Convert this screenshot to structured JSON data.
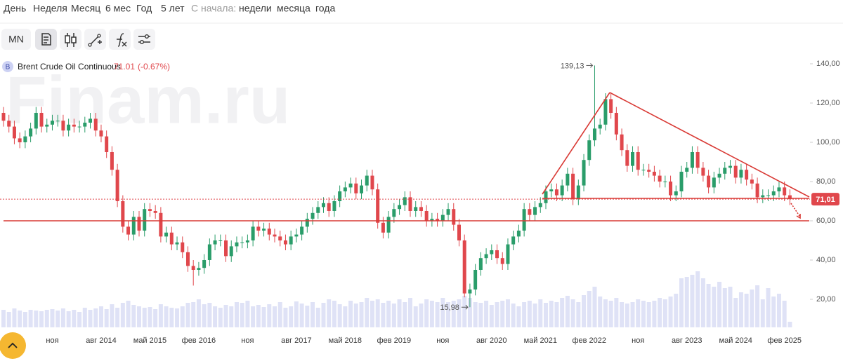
{
  "toolbar": {
    "tabs": [
      "День",
      "Неделя",
      "Месяц",
      "6 мес",
      "Год",
      "5 лет"
    ],
    "since_label": "С начала:",
    "since": [
      "недели",
      "месяца",
      "года"
    ],
    "symbol_button": "MN"
  },
  "watermark": "Finam.ru",
  "chart_data": {
    "type": "candlestick",
    "legend": {
      "symbol": "B",
      "name": "Brent Crude Oil Continuous",
      "price": 71.01,
      "change": {
        "value": -0.67,
        "label": "(-0.67%)"
      }
    },
    "categories": [
      null,
      null,
      null,
      null,
      null,
      null,
      null,
      null,
      null,
      "ноя",
      null,
      null,
      null,
      null,
      null,
      null,
      null,
      null,
      "авг 2014",
      null,
      null,
      null,
      null,
      null,
      null,
      null,
      null,
      "май 2015",
      null,
      null,
      null,
      null,
      null,
      null,
      null,
      null,
      "фев 2016",
      null,
      null,
      null,
      null,
      null,
      null,
      null,
      null,
      "ноя",
      null,
      null,
      null,
      null,
      null,
      null,
      null,
      null,
      "авг 2017",
      null,
      null,
      null,
      null,
      null,
      null,
      null,
      null,
      "май 2018",
      null,
      null,
      null,
      null,
      null,
      null,
      null,
      null,
      "фев 2019",
      null,
      null,
      null,
      null,
      null,
      null,
      null,
      null,
      "ноя",
      null,
      null,
      null,
      null,
      null,
      null,
      null,
      null,
      "авг 2020",
      null,
      null,
      null,
      null,
      null,
      null,
      null,
      null,
      "май 2021",
      null,
      null,
      null,
      null,
      null,
      null,
      null,
      null,
      "фев 2022",
      null,
      null,
      null,
      null,
      null,
      null,
      null,
      null,
      "ноя",
      null,
      null,
      null,
      null,
      null,
      null,
      null,
      null,
      "авг 2023",
      null,
      null,
      null,
      null,
      null,
      null,
      null,
      null,
      "май 2024",
      null,
      null,
      null,
      null,
      null,
      null,
      null,
      null,
      "фев 2025",
      null
    ],
    "open": [
      115,
      111,
      108,
      102,
      100,
      103,
      107,
      115,
      108,
      109,
      111,
      111,
      106,
      109,
      108,
      108,
      110,
      112,
      106,
      103,
      95,
      86,
      70,
      57,
      53,
      62,
      55,
      66,
      65,
      64,
      52,
      54,
      48,
      49,
      44,
      37,
      35,
      36,
      40,
      48,
      50,
      50,
      42,
      47,
      49,
      49,
      50,
      57,
      55,
      56,
      53,
      52,
      50,
      48,
      52,
      53,
      57,
      61,
      64,
      67,
      69,
      65,
      70,
      75,
      77,
      79,
      74,
      78,
      83,
      76,
      59,
      54,
      62,
      66,
      68,
      72,
      65,
      67,
      65,
      60,
      61,
      60,
      63,
      66,
      58,
      50,
      23,
      25,
      35,
      41,
      43,
      45,
      41,
      38,
      48,
      52,
      55,
      66,
      63,
      67,
      69,
      75,
      76,
      73,
      78,
      84,
      71,
      78,
      91,
      101,
      107,
      109,
      122,
      115,
      104,
      96,
      88,
      95,
      86,
      86,
      85,
      83,
      80,
      80,
      73,
      75,
      85,
      87,
      95,
      87,
      83,
      77,
      82,
      84,
      87,
      88,
      82,
      86,
      81,
      79,
      72,
      73,
      73,
      75,
      77,
      73
    ],
    "high": [
      118,
      114,
      111,
      105,
      106,
      110,
      118,
      118,
      112,
      114,
      114,
      114,
      112,
      112,
      111,
      113,
      115,
      115,
      109,
      106,
      98,
      89,
      73,
      60,
      65,
      65,
      69,
      69,
      68,
      67,
      57,
      57,
      52,
      52,
      47,
      40,
      39,
      43,
      51,
      53,
      53,
      53,
      50,
      52,
      52,
      53,
      60,
      60,
      59,
      59,
      56,
      55,
      53,
      55,
      56,
      60,
      64,
      67,
      70,
      72,
      72,
      73,
      78,
      80,
      82,
      82,
      81,
      86,
      86,
      79,
      62,
      65,
      69,
      71,
      75,
      75,
      70,
      70,
      68,
      64,
      64,
      66,
      69,
      69,
      61,
      53,
      28,
      38,
      44,
      46,
      48,
      48,
      44,
      51,
      55,
      58,
      69,
      69,
      70,
      72,
      78,
      79,
      79,
      81,
      87,
      87,
      81,
      94,
      104,
      139.13,
      112,
      125,
      125,
      118,
      107,
      99,
      98,
      98,
      89,
      89,
      88,
      86,
      83,
      83,
      78,
      88,
      90,
      98,
      98,
      90,
      86,
      85,
      87,
      90,
      91,
      91,
      89,
      89,
      84,
      82,
      76,
      76,
      78,
      80,
      80,
      76
    ],
    "low": [
      108,
      105,
      99,
      97,
      97,
      100,
      104,
      105,
      105,
      106,
      108,
      103,
      103,
      105,
      105,
      105,
      107,
      103,
      100,
      92,
      83,
      67,
      54,
      50,
      50,
      52,
      52,
      62,
      61,
      49,
      49,
      45,
      45,
      41,
      34,
      27,
      32,
      33,
      37,
      45,
      47,
      39,
      39,
      44,
      46,
      46,
      47,
      52,
      52,
      50,
      49,
      47,
      45,
      45,
      49,
      50,
      54,
      58,
      61,
      64,
      62,
      62,
      67,
      72,
      74,
      71,
      71,
      75,
      73,
      56,
      51,
      51,
      59,
      63,
      65,
      62,
      62,
      62,
      57,
      57,
      57,
      57,
      60,
      55,
      47,
      21,
      15.98,
      22,
      32,
      38,
      40,
      38,
      35,
      35,
      45,
      49,
      52,
      60,
      60,
      64,
      66,
      72,
      70,
      70,
      75,
      68,
      68,
      75,
      88,
      98,
      104,
      106,
      112,
      101,
      93,
      85,
      85,
      83,
      83,
      82,
      80,
      77,
      77,
      70,
      70,
      72,
      82,
      84,
      84,
      80,
      74,
      74,
      79,
      81,
      84,
      79,
      79,
      78,
      76,
      69,
      69,
      70,
      70,
      72,
      70,
      68
    ],
    "close": [
      111,
      108,
      102,
      100,
      103,
      107,
      115,
      108,
      109,
      111,
      111,
      106,
      109,
      108,
      108,
      110,
      112,
      106,
      103,
      95,
      86,
      70,
      57,
      53,
      62,
      55,
      66,
      65,
      64,
      52,
      54,
      48,
      49,
      44,
      37,
      35,
      36,
      40,
      48,
      50,
      50,
      42,
      47,
      49,
      49,
      50,
      57,
      55,
      56,
      53,
      52,
      50,
      48,
      52,
      53,
      57,
      61,
      64,
      67,
      69,
      65,
      70,
      75,
      77,
      79,
      74,
      78,
      83,
      76,
      59,
      54,
      62,
      66,
      68,
      72,
      65,
      67,
      65,
      60,
      61,
      60,
      63,
      66,
      58,
      50,
      23,
      25,
      35,
      41,
      43,
      45,
      41,
      38,
      48,
      52,
      55,
      66,
      63,
      67,
      69,
      75,
      76,
      73,
      78,
      84,
      71,
      78,
      91,
      101,
      107,
      109,
      122,
      115,
      104,
      96,
      88,
      95,
      86,
      86,
      85,
      83,
      80,
      80,
      73,
      75,
      85,
      87,
      95,
      87,
      83,
      77,
      82,
      84,
      87,
      88,
      82,
      86,
      81,
      79,
      72,
      73,
      73,
      75,
      77,
      73,
      71.01
    ],
    "volume": [
      25,
      22,
      27,
      24,
      22,
      25,
      24,
      23,
      25,
      26,
      24,
      27,
      23,
      25,
      22,
      28,
      25,
      27,
      30,
      26,
      33,
      28,
      35,
      38,
      32,
      30,
      28,
      29,
      26,
      33,
      30,
      28,
      27,
      30,
      35,
      36,
      40,
      33,
      35,
      30,
      28,
      32,
      30,
      36,
      35,
      38,
      30,
      32,
      29,
      33,
      30,
      36,
      28,
      30,
      37,
      34,
      31,
      36,
      28,
      35,
      40,
      38,
      33,
      30,
      38,
      34,
      36,
      42,
      38,
      40,
      35,
      38,
      34,
      40,
      36,
      42,
      30,
      34,
      40,
      38,
      36,
      42,
      36,
      38,
      40,
      45,
      42,
      36,
      35,
      38,
      32,
      36,
      38,
      40,
      34,
      30,
      36,
      38,
      34,
      40,
      35,
      38,
      36,
      42,
      45,
      40,
      36,
      46,
      52,
      58,
      44,
      40,
      38,
      42,
      36,
      34,
      36,
      40,
      38,
      36,
      38,
      42,
      40,
      44,
      48,
      70,
      72,
      75,
      80,
      70,
      62,
      58,
      65,
      56,
      58,
      42,
      50,
      48,
      54,
      60,
      40,
      56,
      44,
      48,
      38,
      8
    ],
    "ylim": [
      4.64,
      160.71
    ],
    "yticks": [
      {
        "value": 20,
        "label": "20,00"
      },
      {
        "value": 40,
        "label": "40,00"
      },
      {
        "value": 60,
        "label": "60,00"
      },
      {
        "value": 80,
        "label": "80,00"
      },
      {
        "value": 100,
        "label": "100,00"
      },
      {
        "value": 120,
        "label": "120,00"
      },
      {
        "value": 140,
        "label": "140,00"
      }
    ],
    "colors": {
      "up": "#2a9d6a",
      "down": "#e0474c",
      "volume": "#dfe2f6",
      "price_line": "#e0474c"
    },
    "last_price": {
      "value": 71.01,
      "label": "71,01"
    },
    "max_label": {
      "value": 139.13,
      "label": "139,13"
    },
    "min_label": {
      "value": 15.98,
      "label": "15,98"
    }
  }
}
